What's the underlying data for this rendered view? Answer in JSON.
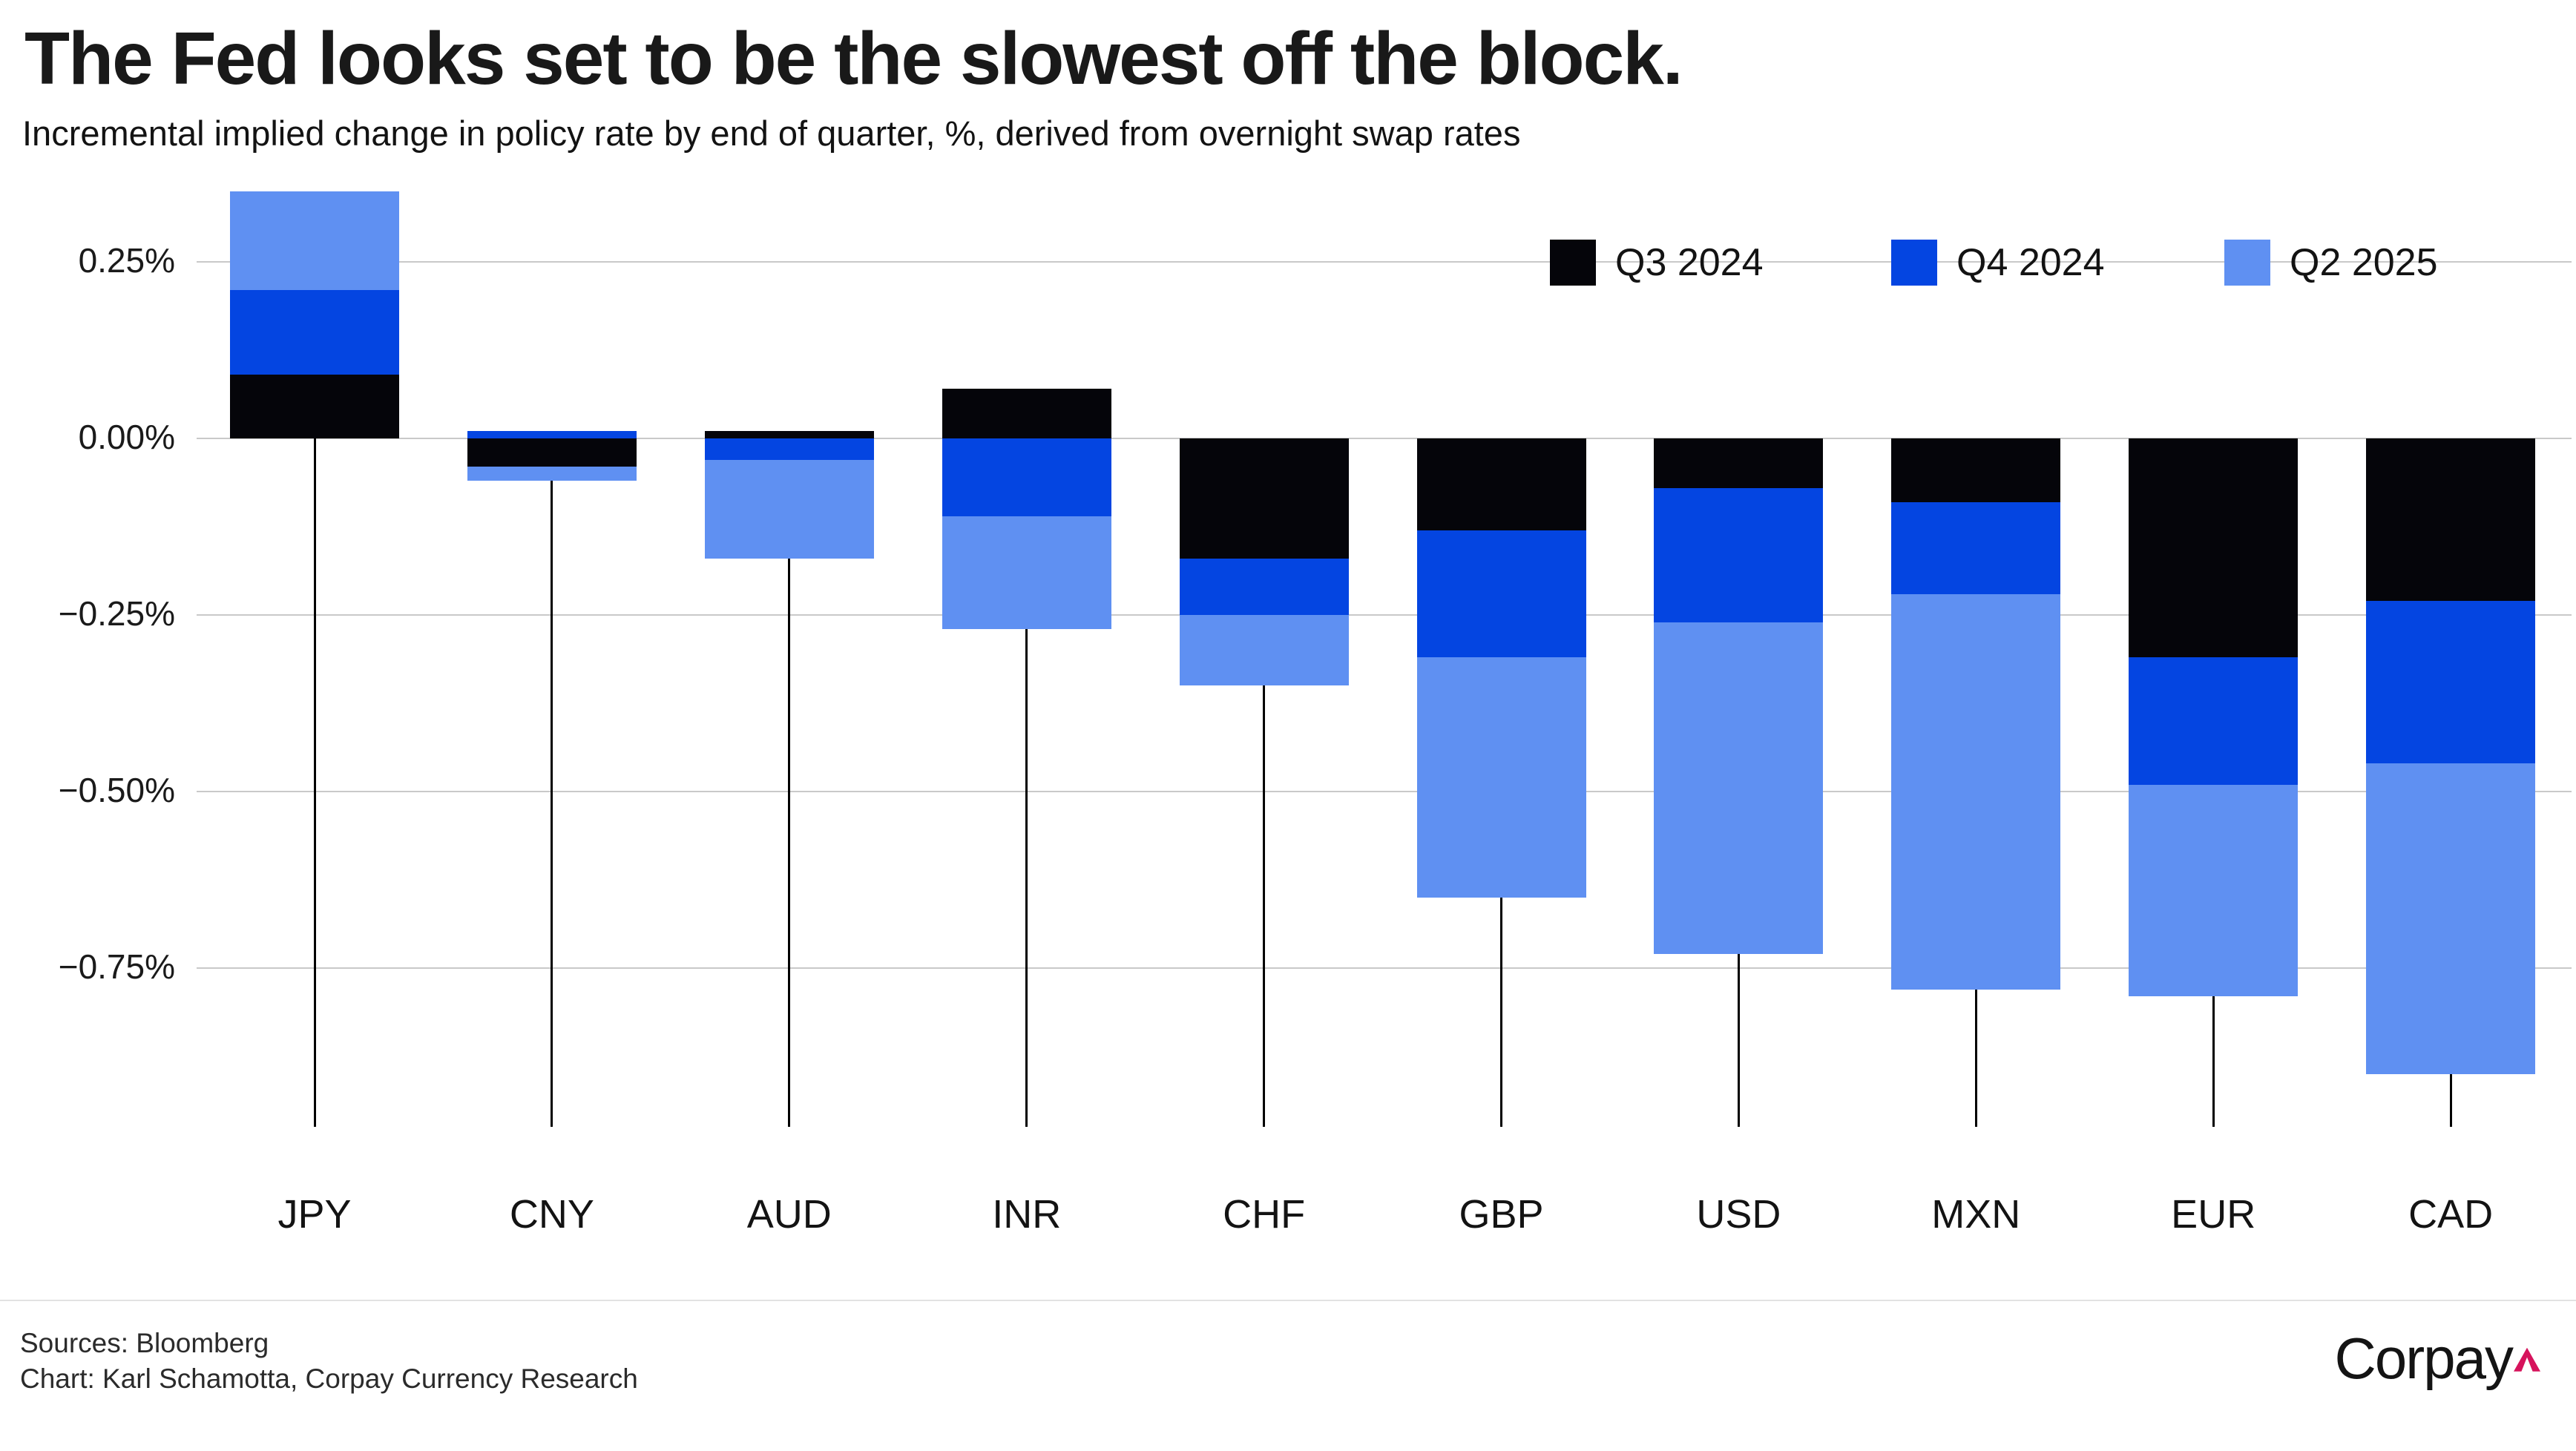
{
  "header": {
    "title": "The Fed looks set to be the slowest off the block.",
    "subtitle": "Incremental implied change in policy rate by end of quarter, %, derived from overnight swap rates"
  },
  "legend": [
    {
      "label": "Q3 2024",
      "color": "#05050a"
    },
    {
      "label": "Q4 2024",
      "color": "#0445e1"
    },
    {
      "label": "Q2 2025",
      "color": "#5f90f2"
    }
  ],
  "footer": {
    "sources": "Sources: Bloomberg",
    "credit": "Chart: Karl Schamotta, Corpay Currency Research",
    "logo_text": "Corpay",
    "logo_caret_color": "#d6135c"
  },
  "colors": {
    "q3_2024": "#05050a",
    "q4_2024": "#0445e1",
    "q2_2025": "#5f90f2",
    "gridline": "#c9c9c9",
    "connector": "#000000"
  },
  "chart_data": {
    "type": "bar",
    "variant": "stacked-column",
    "title": "The Fed looks set to be the slowest off the block.",
    "subtitle": "Incremental implied change in policy rate by end of quarter, %, derived from overnight swap rates",
    "unit": "%",
    "categories": [
      "JPY",
      "CNY",
      "AUD",
      "INR",
      "CHF",
      "GBP",
      "USD",
      "MXN",
      "EUR",
      "CAD"
    ],
    "series": [
      {
        "name": "Q3 2024",
        "color": "#05050a",
        "values": [
          0.09,
          -0.04,
          0.01,
          0.07,
          -0.17,
          -0.13,
          -0.07,
          -0.09,
          -0.31,
          -0.23
        ]
      },
      {
        "name": "Q4 2024",
        "color": "#0445e1",
        "values": [
          0.12,
          0.01,
          -0.03,
          -0.11,
          -0.08,
          -0.18,
          -0.19,
          -0.13,
          -0.18,
          -0.23
        ]
      },
      {
        "name": "Q2 2025",
        "color": "#5f90f2",
        "values": [
          0.14,
          -0.02,
          -0.14,
          -0.16,
          -0.1,
          -0.34,
          -0.47,
          -0.56,
          -0.3,
          -0.44
        ]
      }
    ],
    "totals": [
      0.35,
      -0.05,
      -0.16,
      -0.2,
      -0.35,
      -0.65,
      -0.73,
      -0.78,
      -0.79,
      -0.9
    ],
    "y_ticks": [
      {
        "label": "0.25%",
        "value": 0.25
      },
      {
        "label": "0.00%",
        "value": 0.0
      },
      {
        "label": "−0.25%",
        "value": -0.25
      },
      {
        "label": "−0.50%",
        "value": -0.5
      },
      {
        "label": "−0.75%",
        "value": -0.75
      }
    ],
    "ylim": [
      -0.95,
      0.37
    ],
    "grid": true,
    "legend_position": "top-right"
  }
}
